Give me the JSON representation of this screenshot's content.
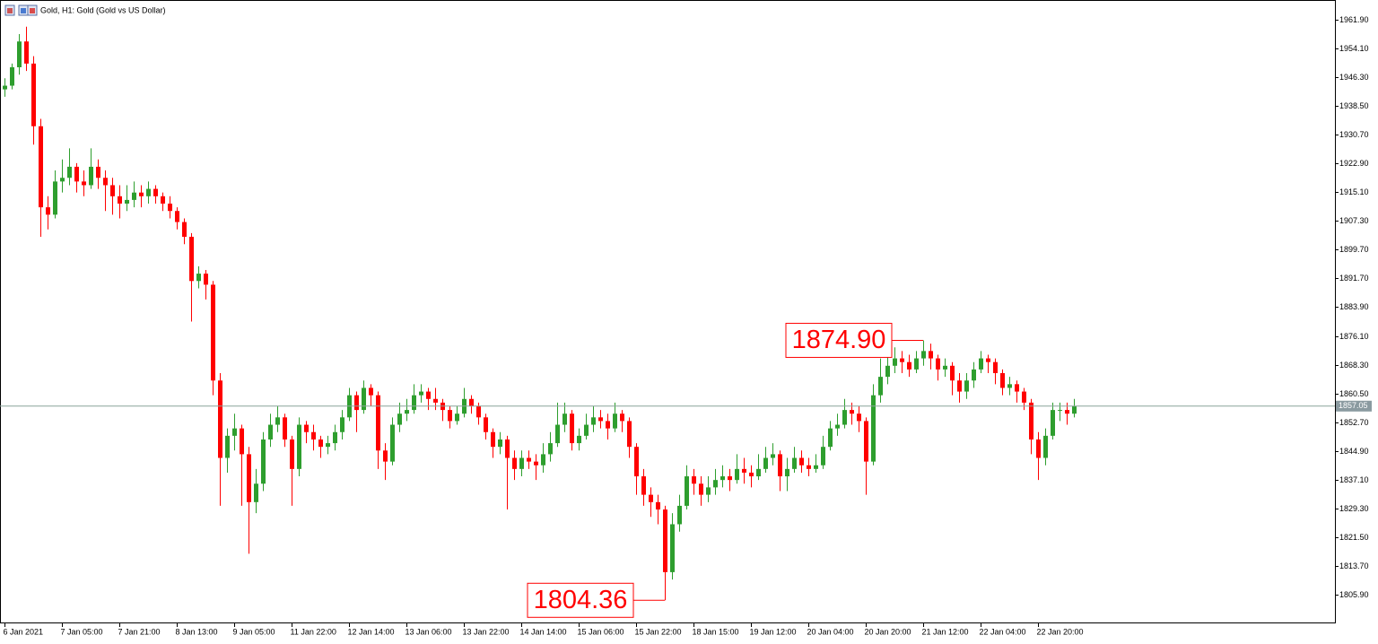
{
  "chart_data": {
    "type": "candlestick",
    "title": "Gold, H1:  Gold (Gold vs US Dollar)",
    "up_color": "#2e9e2e",
    "down_color": "#ff0000",
    "ylim": [
      1798.1,
      1967.25
    ],
    "yticks": [
      {
        "value": 1961.9,
        "label": "1961.90"
      },
      {
        "value": 1954.1,
        "label": "1954.10"
      },
      {
        "value": 1946.3,
        "label": "1946.30"
      },
      {
        "value": 1938.5,
        "label": "1938.50"
      },
      {
        "value": 1930.7,
        "label": "1930.70"
      },
      {
        "value": 1922.9,
        "label": "1922.90"
      },
      {
        "value": 1915.1,
        "label": "1915.10"
      },
      {
        "value": 1907.3,
        "label": "1907.30"
      },
      {
        "value": 1899.7,
        "label": "1899.70"
      },
      {
        "value": 1891.7,
        "label": "1891.70"
      },
      {
        "value": 1883.9,
        "label": "1883.90"
      },
      {
        "value": 1876.1,
        "label": "1876.10"
      },
      {
        "value": 1868.3,
        "label": "1868.30"
      },
      {
        "value": 1860.5,
        "label": "1860.50"
      },
      {
        "value": 1852.7,
        "label": "1852.70"
      },
      {
        "value": 1844.9,
        "label": "1844.90"
      },
      {
        "value": 1837.1,
        "label": "1837.10"
      },
      {
        "value": 1829.3,
        "label": "1829.30"
      },
      {
        "value": 1821.5,
        "label": "1821.50"
      },
      {
        "value": 1813.7,
        "label": "1813.70"
      },
      {
        "value": 1805.9,
        "label": "1805.90"
      }
    ],
    "x_labels": [
      "6 Jan 2021",
      "7 Jan 05:00",
      "7 Jan 21:00",
      "8 Jan 13:00",
      "9 Jan 05:00",
      "11 Jan 22:00",
      "12 Jan 14:00",
      "13 Jan 06:00",
      "13 Jan 22:00",
      "14 Jan 14:00",
      "15 Jan 06:00",
      "15 Jan 22:00",
      "18 Jan 15:00",
      "19 Jan 12:00",
      "20 Jan 04:00",
      "20 Jan 20:00",
      "21 Jan 12:00",
      "22 Jan 04:00",
      "22 Jan 20:00"
    ],
    "current_price": 1857.05,
    "annotations": [
      {
        "value": 1874.9,
        "label": "1874.90"
      },
      {
        "value": 1804.36,
        "label": "1804.36"
      }
    ],
    "candles": [
      [
        1943,
        1946,
        1941,
        1944
      ],
      [
        1944,
        1950,
        1943,
        1949
      ],
      [
        1949,
        1958,
        1947,
        1956
      ],
      [
        1956,
        1960,
        1948,
        1950
      ],
      [
        1950,
        1952,
        1928,
        1933
      ],
      [
        1933,
        1935,
        1903,
        1911
      ],
      [
        1911,
        1914,
        1905,
        1909
      ],
      [
        1909,
        1921,
        1908,
        1918
      ],
      [
        1918,
        1924,
        1915,
        1919
      ],
      [
        1919,
        1927,
        1917,
        1922
      ],
      [
        1922,
        1923,
        1915,
        1918
      ],
      [
        1918,
        1921,
        1914,
        1917
      ],
      [
        1917,
        1927,
        1916,
        1922
      ],
      [
        1922,
        1924,
        1916,
        1919
      ],
      [
        1919,
        1921,
        1910,
        1917
      ],
      [
        1917,
        1919,
        1909,
        1914
      ],
      [
        1914,
        1917,
        1908,
        1912
      ],
      [
        1912,
        1917,
        1910,
        1913
      ],
      [
        1913,
        1918,
        1911,
        1915
      ],
      [
        1915,
        1917,
        1911,
        1914
      ],
      [
        1914,
        1918,
        1912,
        1916
      ],
      [
        1916,
        1917,
        1912,
        1914
      ],
      [
        1914,
        1915,
        1910,
        1912
      ],
      [
        1912,
        1914,
        1908,
        1910
      ],
      [
        1910,
        1911,
        1905,
        1907
      ],
      [
        1907,
        1908,
        1901,
        1903
      ],
      [
        1903,
        1904,
        1880,
        1891
      ],
      [
        1891,
        1895,
        1889,
        1893
      ],
      [
        1893,
        1894,
        1886,
        1890
      ],
      [
        1890,
        1891,
        1860,
        1864
      ],
      [
        1864,
        1866,
        1830,
        1843
      ],
      [
        1843,
        1851,
        1839,
        1849
      ],
      [
        1849,
        1855,
        1845,
        1851
      ],
      [
        1851,
        1852,
        1830,
        1844
      ],
      [
        1844,
        1846,
        1817,
        1831
      ],
      [
        1831,
        1840,
        1828,
        1836
      ],
      [
        1836,
        1850,
        1834,
        1848
      ],
      [
        1848,
        1855,
        1846,
        1852
      ],
      [
        1852,
        1857,
        1850,
        1854
      ],
      [
        1854,
        1855,
        1846,
        1848
      ],
      [
        1848,
        1849,
        1830,
        1840
      ],
      [
        1840,
        1854,
        1838,
        1852
      ],
      [
        1852,
        1853,
        1847,
        1850
      ],
      [
        1850,
        1852,
        1845,
        1848
      ],
      [
        1848,
        1849,
        1843,
        1846
      ],
      [
        1846,
        1849,
        1844,
        1847
      ],
      [
        1847,
        1852,
        1845,
        1850
      ],
      [
        1850,
        1856,
        1848,
        1854
      ],
      [
        1854,
        1862,
        1853,
        1860
      ],
      [
        1860,
        1861,
        1850,
        1856
      ],
      [
        1856,
        1864,
        1855,
        1862
      ],
      [
        1862,
        1863,
        1857,
        1860
      ],
      [
        1860,
        1861,
        1840,
        1845
      ],
      [
        1845,
        1847,
        1837,
        1842
      ],
      [
        1842,
        1854,
        1841,
        1852
      ],
      [
        1852,
        1858,
        1850,
        1855
      ],
      [
        1855,
        1859,
        1853,
        1856
      ],
      [
        1856,
        1863,
        1855,
        1860
      ],
      [
        1860,
        1863,
        1858,
        1861
      ],
      [
        1861,
        1862,
        1856,
        1859
      ],
      [
        1859,
        1862,
        1856,
        1858
      ],
      [
        1858,
        1859,
        1853,
        1856
      ],
      [
        1856,
        1857,
        1851,
        1853
      ],
      [
        1853,
        1857,
        1852,
        1855
      ],
      [
        1855,
        1862,
        1854,
        1859
      ],
      [
        1859,
        1860,
        1855,
        1857
      ],
      [
        1857,
        1858,
        1852,
        1854
      ],
      [
        1854,
        1855,
        1848,
        1850
      ],
      [
        1850,
        1851,
        1843,
        1846
      ],
      [
        1846,
        1850,
        1844,
        1848
      ],
      [
        1848,
        1849,
        1829,
        1843
      ],
      [
        1843,
        1845,
        1837,
        1840
      ],
      [
        1840,
        1845,
        1838,
        1843
      ],
      [
        1843,
        1845,
        1840,
        1842
      ],
      [
        1842,
        1844,
        1837,
        1841
      ],
      [
        1841,
        1847,
        1839,
        1844
      ],
      [
        1844,
        1850,
        1842,
        1847
      ],
      [
        1847,
        1858,
        1846,
        1852
      ],
      [
        1852,
        1858,
        1850,
        1855
      ],
      [
        1855,
        1856,
        1845,
        1847
      ],
      [
        1847,
        1851,
        1845,
        1849
      ],
      [
        1849,
        1855,
        1848,
        1852
      ],
      [
        1852,
        1857,
        1850,
        1854
      ],
      [
        1854,
        1856,
        1851,
        1853
      ],
      [
        1853,
        1855,
        1848,
        1851
      ],
      [
        1851,
        1858,
        1850,
        1855
      ],
      [
        1855,
        1856,
        1850,
        1853
      ],
      [
        1853,
        1854,
        1843,
        1846
      ],
      [
        1846,
        1847,
        1833,
        1838
      ],
      [
        1838,
        1840,
        1830,
        1833
      ],
      [
        1833,
        1835,
        1827,
        1831
      ],
      [
        1831,
        1833,
        1825,
        1829
      ],
      [
        1829,
        1830,
        1804.36,
        1812
      ],
      [
        1812,
        1828,
        1810,
        1825
      ],
      [
        1825,
        1833,
        1823,
        1830
      ],
      [
        1830,
        1841,
        1829,
        1838
      ],
      [
        1838,
        1840,
        1833,
        1836
      ],
      [
        1836,
        1838,
        1830,
        1833
      ],
      [
        1833,
        1838,
        1831,
        1835
      ],
      [
        1835,
        1840,
        1833,
        1837
      ],
      [
        1837,
        1841,
        1835,
        1838
      ],
      [
        1838,
        1840,
        1834,
        1837
      ],
      [
        1837,
        1844,
        1836,
        1840
      ],
      [
        1840,
        1843,
        1836,
        1839
      ],
      [
        1839,
        1841,
        1835,
        1838
      ],
      [
        1838,
        1844,
        1837,
        1840
      ],
      [
        1840,
        1846,
        1839,
        1843
      ],
      [
        1843,
        1847,
        1841,
        1844
      ],
      [
        1844,
        1845,
        1834,
        1838
      ],
      [
        1838,
        1843,
        1834,
        1840
      ],
      [
        1840,
        1846,
        1839,
        1843
      ],
      [
        1843,
        1845,
        1839,
        1841
      ],
      [
        1841,
        1843,
        1838,
        1840
      ],
      [
        1840,
        1844,
        1839,
        1841
      ],
      [
        1841,
        1849,
        1840,
        1846
      ],
      [
        1846,
        1853,
        1845,
        1851
      ],
      [
        1851,
        1855,
        1849,
        1852
      ],
      [
        1852,
        1859,
        1851,
        1856
      ],
      [
        1856,
        1858,
        1852,
        1855
      ],
      [
        1855,
        1857,
        1850,
        1853
      ],
      [
        1853,
        1854,
        1833,
        1842
      ],
      [
        1842,
        1863,
        1841,
        1860
      ],
      [
        1860,
        1870,
        1858,
        1865
      ],
      [
        1865,
        1871,
        1863,
        1868
      ],
      [
        1868,
        1873,
        1866,
        1870
      ],
      [
        1870,
        1872,
        1866,
        1869
      ],
      [
        1869,
        1871,
        1865,
        1867
      ],
      [
        1867,
        1872,
        1866,
        1870
      ],
      [
        1870,
        1874.9,
        1868,
        1872
      ],
      [
        1872,
        1874,
        1867,
        1870
      ],
      [
        1870,
        1871,
        1864,
        1867
      ],
      [
        1867,
        1870,
        1865,
        1868
      ],
      [
        1868,
        1869,
        1860,
        1864
      ],
      [
        1864,
        1866,
        1858,
        1861
      ],
      [
        1861,
        1866,
        1859,
        1864
      ],
      [
        1864,
        1869,
        1862,
        1867
      ],
      [
        1867,
        1872,
        1866,
        1870
      ],
      [
        1870,
        1871,
        1866,
        1869
      ],
      [
        1869,
        1870,
        1863,
        1866
      ],
      [
        1866,
        1867,
        1860,
        1862
      ],
      [
        1862,
        1865,
        1860,
        1863
      ],
      [
        1863,
        1864,
        1858,
        1861
      ],
      [
        1861,
        1862,
        1856,
        1858
      ],
      [
        1858,
        1859,
        1844,
        1848
      ],
      [
        1848,
        1850,
        1837,
        1843
      ],
      [
        1843,
        1851,
        1841,
        1849
      ],
      [
        1849,
        1858,
        1848,
        1856
      ],
      [
        1856,
        1858,
        1853,
        1856
      ],
      [
        1856,
        1858,
        1852,
        1855
      ],
      [
        1855,
        1859,
        1854,
        1857.05
      ]
    ]
  }
}
